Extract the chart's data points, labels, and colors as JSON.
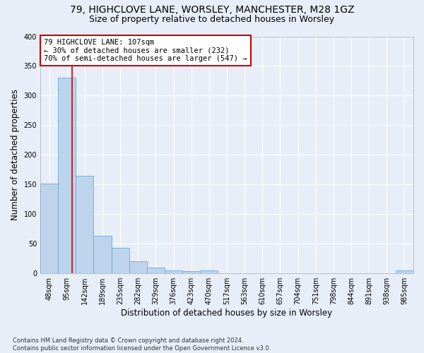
{
  "title1": "79, HIGHCLOVE LANE, WORSLEY, MANCHESTER, M28 1GZ",
  "title2": "Size of property relative to detached houses in Worsley",
  "xlabel": "Distribution of detached houses by size in Worsley",
  "ylabel": "Number of detached properties",
  "footnote": "Contains HM Land Registry data © Crown copyright and database right 2024.\nContains public sector information licensed under the Open Government Licence v3.0.",
  "bin_labels": [
    "48sqm",
    "95sqm",
    "142sqm",
    "189sqm",
    "235sqm",
    "282sqm",
    "329sqm",
    "376sqm",
    "423sqm",
    "470sqm",
    "517sqm",
    "563sqm",
    "610sqm",
    "657sqm",
    "704sqm",
    "751sqm",
    "798sqm",
    "844sqm",
    "891sqm",
    "938sqm",
    "985sqm"
  ],
  "bar_heights": [
    152,
    330,
    165,
    63,
    43,
    20,
    10,
    5,
    4,
    5,
    0,
    0,
    0,
    0,
    0,
    0,
    0,
    0,
    0,
    0,
    5
  ],
  "bar_color": "#bdd4ec",
  "bar_edge_color": "#6aaad4",
  "property_line_bin_index": 1.28,
  "annotation_line1": "79 HIGHCLOVE LANE: 107sqm",
  "annotation_line2": "← 30% of detached houses are smaller (232)",
  "annotation_line3": "70% of semi-detached houses are larger (547) →",
  "annotation_box_color": "#ffffff",
  "annotation_box_edge_color": "#cc0000",
  "vline_color": "#cc0000",
  "ylim": [
    0,
    400
  ],
  "yticks": [
    0,
    50,
    100,
    150,
    200,
    250,
    300,
    350,
    400
  ],
  "background_color": "#e8eef7",
  "grid_color": "#ffffff",
  "title_fontsize": 10,
  "subtitle_fontsize": 9,
  "axis_label_fontsize": 8.5,
  "tick_fontsize": 7,
  "annotation_fontsize": 7.5,
  "footnote_fontsize": 6
}
